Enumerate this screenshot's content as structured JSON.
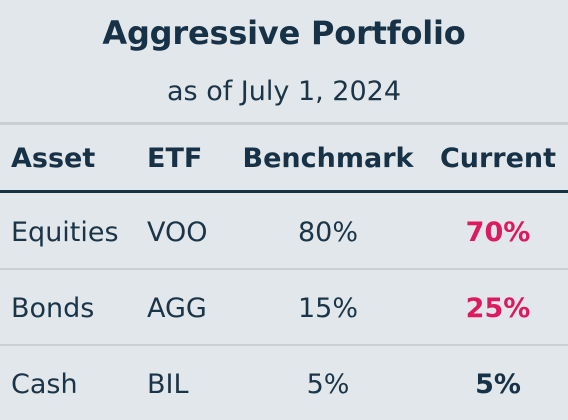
{
  "title": "Aggressive Portfolio",
  "subtitle": "as of July 1, 2024",
  "columns": [
    "Asset",
    "ETF",
    "Benchmark",
    "Current"
  ],
  "rows": [
    {
      "asset": "Equities",
      "etf": "VOO",
      "benchmark": "80%",
      "current": "70%"
    },
    {
      "asset": "Bonds",
      "etf": "AGG",
      "benchmark": "15%",
      "current": "25%"
    },
    {
      "asset": "Cash",
      "etf": "BIL",
      "benchmark": "5%",
      "current": "5%"
    }
  ],
  "colors": {
    "background": "#e1e7ea",
    "text": "#173246",
    "highlight": "#dd1a5e",
    "divider": "#c9cfd2"
  }
}
